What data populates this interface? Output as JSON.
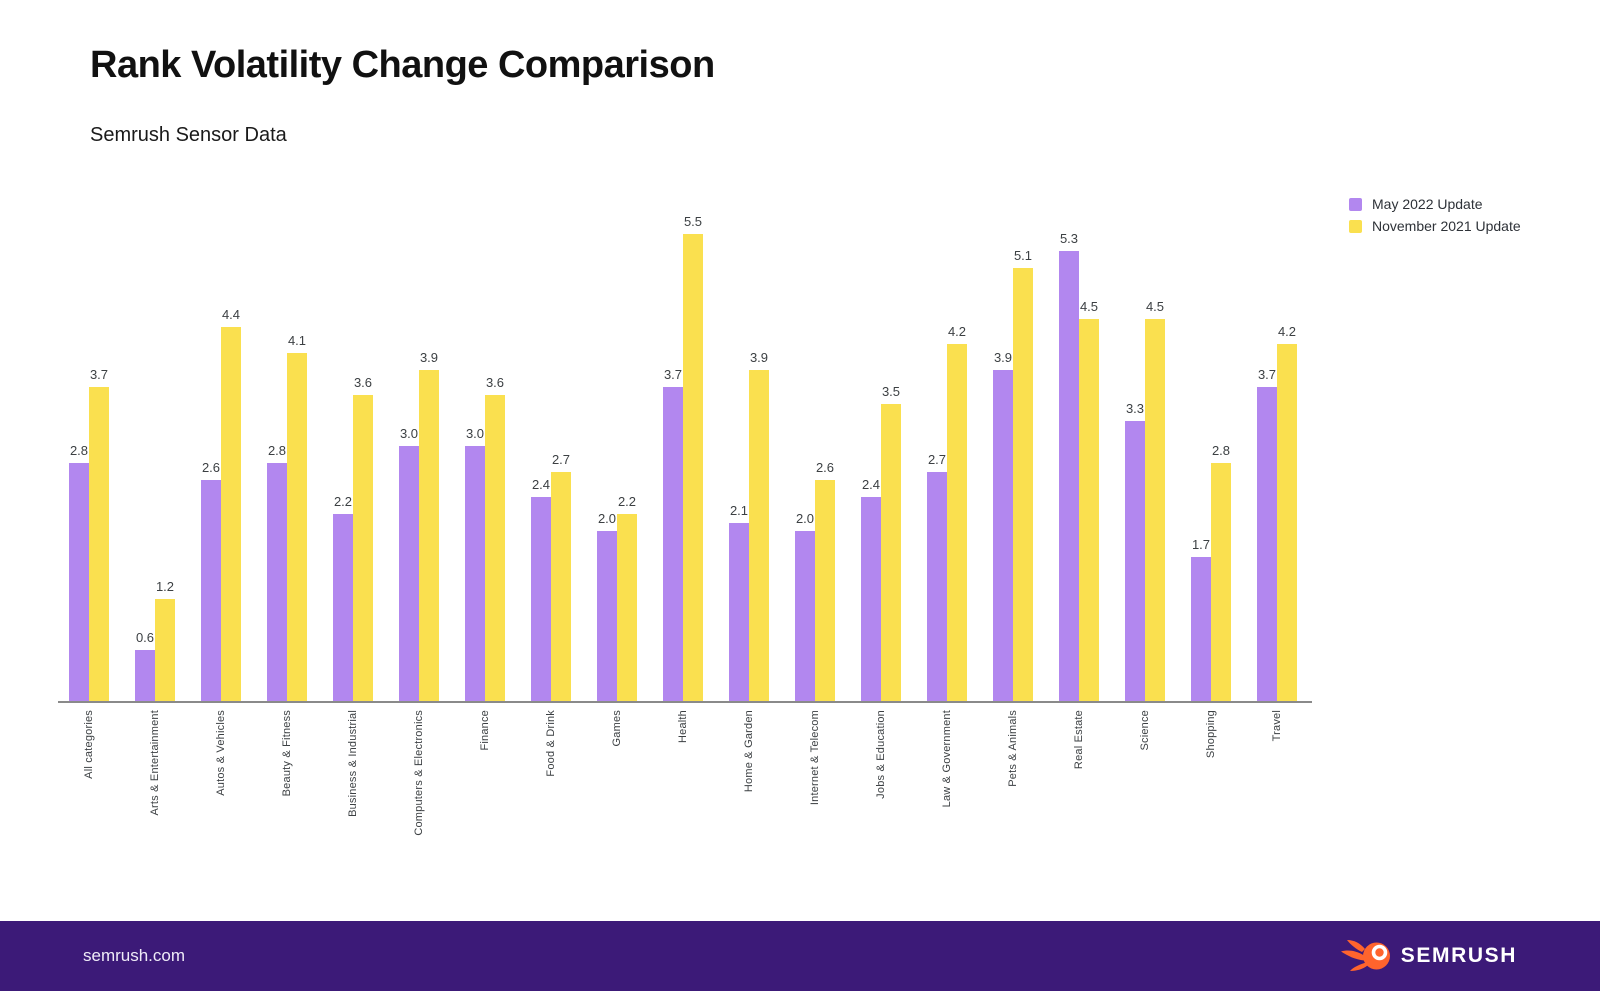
{
  "header": {
    "title": "Rank Volatility Change Comparison",
    "subtitle": "Semrush Sensor Data"
  },
  "legend": {
    "position": "top-right",
    "items": [
      {
        "label": "May 2022 Update",
        "color": "#b287ef"
      },
      {
        "label": "November 2021 Update",
        "color": "#fae04f"
      }
    ]
  },
  "chart_data": {
    "type": "bar",
    "title": "Rank Volatility Change Comparison",
    "subtitle": "Semrush Sensor Data",
    "xlabel": "",
    "ylabel": "",
    "ylim": [
      0,
      5.5
    ],
    "grid": false,
    "value_labels": true,
    "legend_position": "top-right",
    "categories": [
      "All categories",
      "Arts & Entertainment",
      "Autos & Vehicles",
      "Beauty & Fitness",
      "Business & Industrial",
      "Computers & Electronics",
      "Finance",
      "Food & Drink",
      "Games",
      "Health",
      "Home & Garden",
      "Internet & Telecom",
      "Jobs & Education",
      "Law & Government",
      "Pets & Animals",
      "Real Estate",
      "Science",
      "Shopping",
      "Travel"
    ],
    "series": [
      {
        "name": "May 2022 Update",
        "color": "#b287ef",
        "values": [
          2.8,
          0.6,
          2.6,
          2.8,
          2.2,
          3.0,
          3.0,
          2.4,
          2.0,
          3.7,
          2.1,
          2.0,
          2.4,
          2.7,
          3.9,
          5.3,
          3.3,
          1.7,
          3.7
        ]
      },
      {
        "name": "November 2021 Update",
        "color": "#fae04f",
        "values": [
          3.7,
          1.2,
          4.4,
          4.1,
          3.6,
          3.9,
          3.6,
          2.7,
          2.2,
          5.5,
          3.9,
          2.6,
          3.5,
          4.2,
          5.1,
          4.5,
          4.5,
          2.8,
          4.2
        ]
      }
    ]
  },
  "footer": {
    "url": "semrush.com",
    "brand": "SEMRUSH",
    "background": "#3c1a78",
    "logo_color": "#ff642d"
  }
}
